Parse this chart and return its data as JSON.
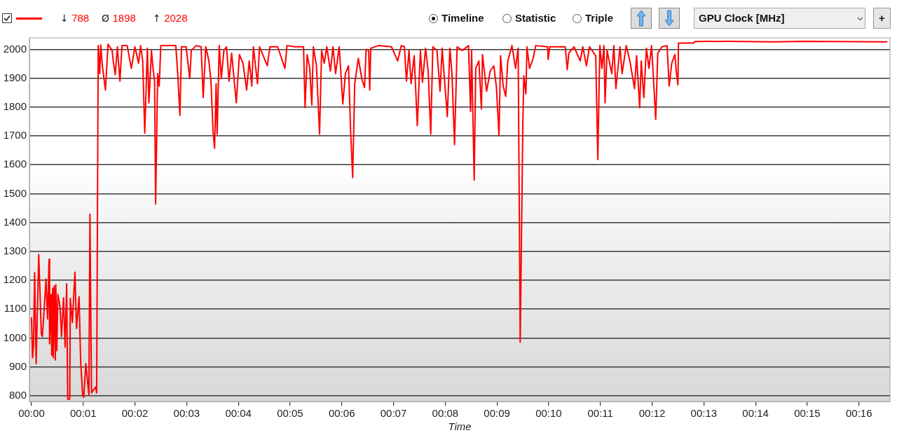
{
  "chart_data": {
    "type": "line",
    "xlabel": "Time",
    "annotations": [
      "↓ 788",
      "Ø 1898",
      "↑ 2028",
      "Timeline",
      "Statistic",
      "Triple",
      "GPU Clock [MHz]",
      "+"
    ],
    "x": [
      0,
      0.02,
      0.04,
      0.06,
      0.09,
      0.14,
      0.19,
      0.21,
      0.25,
      0.28,
      0.31,
      0.34,
      0.35,
      0.38,
      0.39,
      0.41,
      0.42,
      0.44,
      0.46,
      0.47,
      0.49,
      0.51,
      0.55,
      0.58,
      0.62,
      0.65,
      0.68,
      0.7,
      0.74,
      0.75,
      0.79,
      0.84,
      0.87,
      0.92,
      0.95,
      0.99,
      1.01,
      1.05,
      1.11,
      1.13,
      1.16,
      1.24,
      1.26,
      1.29,
      1.32,
      1.34,
      1.37,
      1.43,
      1.48,
      1.56,
      1.58,
      1.62,
      1.66,
      1.71,
      1.75,
      1.85,
      1.93,
      2.0,
      2.07,
      2.11,
      2.15,
      2.19,
      2.24,
      2.27,
      2.32,
      2.35,
      2.38,
      2.4,
      2.44,
      2.47,
      2.5,
      2.79,
      2.83,
      2.87,
      2.9,
      2.99,
      3.06,
      3.09,
      3.18,
      3.28,
      3.32,
      3.37,
      3.43,
      3.47,
      3.51,
      3.54,
      3.57,
      3.59,
      3.63,
      3.67,
      3.72,
      3.77,
      3.82,
      3.87,
      3.96,
      4.02,
      4.09,
      4.16,
      4.21,
      4.26,
      4.29,
      4.37,
      4.41,
      4.56,
      4.61,
      4.76,
      4.9,
      4.94,
      5.09,
      5.26,
      5.29,
      5.33,
      5.38,
      5.42,
      5.45,
      5.51,
      5.57,
      5.61,
      5.66,
      5.71,
      5.78,
      5.83,
      5.88,
      5.95,
      6.02,
      6.07,
      6.13,
      6.17,
      6.21,
      6.25,
      6.32,
      6.39,
      6.44,
      6.47,
      6.52,
      6.54,
      6.56,
      6.71,
      6.96,
      7.08,
      7.15,
      7.21,
      7.25,
      7.3,
      7.34,
      7.4,
      7.46,
      7.52,
      7.56,
      7.62,
      7.67,
      7.72,
      7.76,
      7.84,
      7.9,
      7.94,
      8.04,
      8.09,
      8.13,
      8.18,
      8.23,
      8.33,
      8.45,
      8.49,
      8.51,
      8.56,
      8.59,
      8.65,
      8.7,
      8.72,
      8.8,
      8.87,
      8.94,
      8.99,
      9.04,
      9.07,
      9.12,
      9.17,
      9.21,
      9.29,
      9.36,
      9.41,
      9.45,
      9.5,
      9.52,
      9.56,
      9.58,
      9.63,
      9.7,
      9.75,
      9.98,
      9.99,
      10.02,
      10.32,
      10.36,
      10.39,
      10.49,
      10.61,
      10.66,
      10.73,
      10.79,
      10.91,
      10.95,
      10.99,
      11.03,
      11.07,
      11.09,
      11.13,
      11.22,
      11.26,
      11.3,
      11.38,
      11.42,
      11.5,
      11.57,
      11.66,
      11.7,
      11.76,
      11.79,
      11.84,
      11.89,
      11.94,
      11.99,
      12.07,
      12.11,
      12.19,
      12.29,
      12.33,
      12.38,
      12.44,
      12.47,
      12.5,
      12.51,
      12.8,
      12.83,
      13.46,
      14.35,
      14.94,
      16.55
    ],
    "series": [
      {
        "color": "#ff0000",
        "values": [
          1072,
          932,
          976,
          1226,
          911,
          1289,
          1013,
          1005,
          1111,
          1204,
          1066,
          1273,
          980,
          1151,
          940,
          1172,
          932,
          1180,
          924,
          1184,
          956,
          1151,
          1110,
          1005,
          1139,
          968,
          1188,
          788,
          788,
          1137,
          1054,
          1228,
          1033,
          1143,
          920,
          800,
          795,
          911,
          802,
          1429,
          810,
          830,
          810,
          2013,
          1916,
          2015,
          1943,
          1859,
          2018,
          1996,
          1960,
          1912,
          2009,
          1890,
          2013,
          2013,
          1934,
          2009,
          1952,
          2013,
          1960,
          1710,
          2004,
          1815,
          1996,
          1934,
          1890,
          1464,
          1916,
          1873,
          2013,
          2013,
          1908,
          1771,
          2009,
          2009,
          1899,
          1996,
          2013,
          2009,
          1833,
          2009,
          1960,
          1890,
          1719,
          1657,
          1881,
          1706,
          2013,
          1899,
          1996,
          2009,
          1890,
          1987,
          1815,
          1982,
          1952,
          1859,
          1960,
          1873,
          2009,
          1881,
          2009,
          1943,
          2009,
          2009,
          1934,
          2013,
          2009,
          2009,
          1798,
          1982,
          1934,
          1807,
          2009,
          1943,
          1706,
          1996,
          1952,
          2009,
          1925,
          2009,
          1916,
          2009,
          1811,
          1916,
          1943,
          1719,
          1556,
          1881,
          1969,
          1895,
          1868,
          2000,
          1996,
          1859,
          2004,
          2013,
          2009,
          1960,
          2013,
          2009,
          1890,
          1996,
          1881,
          1978,
          1736,
          1996,
          1886,
          2004,
          1925,
          1706,
          2009,
          1996,
          1855,
          2004,
          1767,
          2004,
          1916,
          1670,
          2009,
          1996,
          2013,
          1785,
          1996,
          1547,
          1934,
          1960,
          1793,
          1982,
          1855,
          1925,
          1943,
          1868,
          1701,
          1978,
          1873,
          1837,
          1960,
          2013,
          1934,
          2004,
          985,
          1736,
          1908,
          1846,
          2009,
          1934,
          1969,
          2013,
          2009,
          1965,
          2009,
          2009,
          1930,
          1987,
          2009,
          1960,
          2009,
          1943,
          2009,
          1978,
          1618,
          2013,
          1934,
          2013,
          1815,
          1996,
          1916,
          2013,
          1864,
          2009,
          1916,
          2013,
          1960,
          1864,
          1978,
          1798,
          1960,
          1833,
          2004,
          1934,
          2013,
          1758,
          1987,
          2009,
          2013,
          1873,
          1952,
          1982,
          1921,
          1877,
          2022,
          2022,
          2027,
          2028,
          2026,
          2028,
          2026
        ]
      }
    ],
    "xlim": [
      -0.04,
      16.6
    ],
    "ylim": [
      780,
      2040
    ],
    "xticks": [
      {
        "value": 0,
        "label": "00:00"
      },
      {
        "value": 1,
        "label": "00:01"
      },
      {
        "value": 2,
        "label": "00:02"
      },
      {
        "value": 3,
        "label": "00:03"
      },
      {
        "value": 4,
        "label": "00:04"
      },
      {
        "value": 5,
        "label": "00:05"
      },
      {
        "value": 6,
        "label": "00:06"
      },
      {
        "value": 7,
        "label": "00:07"
      },
      {
        "value": 8,
        "label": "00:08"
      },
      {
        "value": 9,
        "label": "00:09"
      },
      {
        "value": 10,
        "label": "00:10"
      },
      {
        "value": 11,
        "label": "00:11"
      },
      {
        "value": 12,
        "label": "00:12"
      },
      {
        "value": 13,
        "label": "00:13"
      },
      {
        "value": 14,
        "label": "00:14"
      },
      {
        "value": 15,
        "label": "00:15"
      },
      {
        "value": 16,
        "label": "00:16"
      }
    ],
    "yticks": [
      800,
      900,
      1000,
      1100,
      1200,
      1300,
      1400,
      1500,
      1600,
      1700,
      1800,
      1900,
      2000
    ],
    "grid": "y",
    "marker": "none",
    "line_style": "solid"
  }
}
